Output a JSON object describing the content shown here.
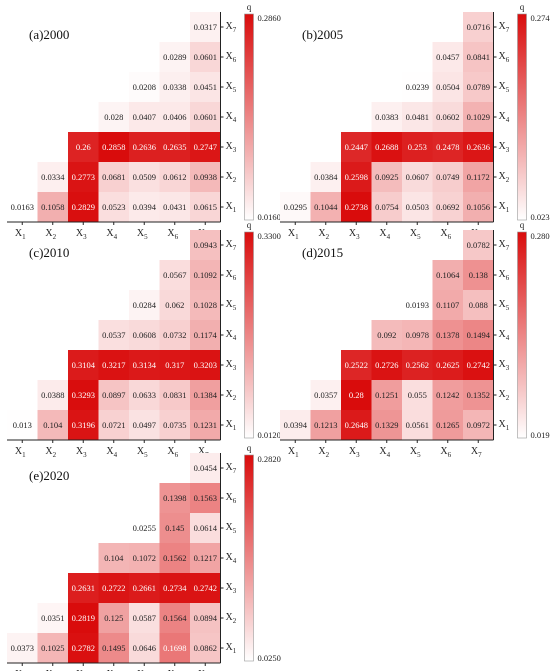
{
  "chart_data": [
    {
      "type": "heatmap",
      "title": "(a)2000",
      "colorbar": {
        "label": "q",
        "max": "0.2860",
        "min": "0.0160",
        "vmax": 0.286,
        "vmin": 0.016
      },
      "x_labels": [
        "X1",
        "X2",
        "X3",
        "X4",
        "X5",
        "X6",
        "X7"
      ],
      "y_labels": [
        "X7",
        "X6",
        "X5",
        "X4",
        "X3",
        "X2",
        "X1"
      ],
      "values": [
        [
          null,
          null,
          null,
          null,
          null,
          null,
          "0.0317"
        ],
        [
          null,
          null,
          null,
          null,
          null,
          "0.0289",
          "0.0601"
        ],
        [
          null,
          null,
          null,
          null,
          "0.0208",
          "0.0338",
          "0.0451"
        ],
        [
          null,
          null,
          null,
          "0.028",
          "0.0407",
          "0.0406",
          "0.0601"
        ],
        [
          null,
          null,
          "0.26",
          "0.2858",
          "0.2636",
          "0.2635",
          "0.2747"
        ],
        [
          null,
          "0.0334",
          "0.2773",
          "0.0681",
          "0.0509",
          "0.0612",
          "0.0938"
        ],
        [
          "0.0163",
          "0.1058",
          "0.2829",
          "0.0523",
          "0.0394",
          "0.0431",
          "0.0615"
        ]
      ]
    },
    {
      "type": "heatmap",
      "title": "(b)2005",
      "colorbar": {
        "label": "q",
        "max": "0.2740",
        "min": "0.0230",
        "vmax": 0.274,
        "vmin": 0.023
      },
      "x_labels": [
        "X1",
        "X2",
        "X3",
        "X4",
        "X5",
        "X6",
        "X7"
      ],
      "y_labels": [
        "X7",
        "X6",
        "X5",
        "X4",
        "X3",
        "X2",
        "X1"
      ],
      "values": [
        [
          null,
          null,
          null,
          null,
          null,
          null,
          "0.0716"
        ],
        [
          null,
          null,
          null,
          null,
          null,
          "0.0457",
          "0.0841"
        ],
        [
          null,
          null,
          null,
          null,
          "0.0239",
          "0.0504",
          "0.0789"
        ],
        [
          null,
          null,
          null,
          "0.0383",
          "0.0481",
          "0.0602",
          "0.1029"
        ],
        [
          null,
          null,
          "0.2447",
          "0.2688",
          "0.253",
          "0.2478",
          "0.2636"
        ],
        [
          null,
          "0.0384",
          "0.2598",
          "0.0925",
          "0.0607",
          "0.0749",
          "0.1172"
        ],
        [
          "0.0295",
          "0.1044",
          "0.2738",
          "0.0754",
          "0.0503",
          "0.0692",
          "0.1056"
        ]
      ]
    },
    {
      "type": "heatmap",
      "title": "(c)2010",
      "colorbar": {
        "label": "q",
        "max": "0.3300",
        "min": "0.0120",
        "vmax": 0.33,
        "vmin": 0.012
      },
      "x_labels": [
        "X1",
        "X2",
        "X3",
        "X4",
        "X5",
        "X6",
        "X7"
      ],
      "y_labels": [
        "X7",
        "X6",
        "X5",
        "X4",
        "X3",
        "X2",
        "X1"
      ],
      "values": [
        [
          null,
          null,
          null,
          null,
          null,
          null,
          "0.0943"
        ],
        [
          null,
          null,
          null,
          null,
          null,
          "0.0567",
          "0.1092"
        ],
        [
          null,
          null,
          null,
          null,
          "0.0284",
          "0.062",
          "0.1028"
        ],
        [
          null,
          null,
          null,
          "0.0537",
          "0.0608",
          "0.0732",
          "0.1174"
        ],
        [
          null,
          null,
          "0.3104",
          "0.3217",
          "0.3134",
          "0.317",
          "0.3203"
        ],
        [
          null,
          "0.0388",
          "0.3293",
          "0.0897",
          "0.0633",
          "0.0831",
          "0.1384"
        ],
        [
          "0.013",
          "0.104",
          "0.3196",
          "0.0721",
          "0.0497",
          "0.0735",
          "0.1231"
        ]
      ]
    },
    {
      "type": "heatmap",
      "title": "(d)2015",
      "colorbar": {
        "label": "q",
        "max": "0.2800",
        "min": "0.0190",
        "vmax": 0.28,
        "vmin": 0.019
      },
      "x_labels": [
        "X1",
        "X2",
        "X3",
        "X4",
        "X5",
        "X6",
        "X7"
      ],
      "y_labels": [
        "X7",
        "X6",
        "X5",
        "X4",
        "X3",
        "X2",
        "X1"
      ],
      "values": [
        [
          null,
          null,
          null,
          null,
          null,
          null,
          "0.0782"
        ],
        [
          null,
          null,
          null,
          null,
          null,
          "0.1064",
          "0.138"
        ],
        [
          null,
          null,
          null,
          null,
          "0.0193",
          "0.1107",
          "0.088"
        ],
        [
          null,
          null,
          null,
          "0.092",
          "0.0978",
          "0.1378",
          "0.1494"
        ],
        [
          null,
          null,
          "0.2522",
          "0.2726",
          "0.2562",
          "0.2625",
          "0.2742"
        ],
        [
          null,
          "0.0357",
          "0.28",
          "0.1251",
          "0.055",
          "0.1242",
          "0.1352"
        ],
        [
          "0.0394",
          "0.1213",
          "0.2648",
          "0.1329",
          "0.0561",
          "0.1265",
          "0.0972"
        ]
      ]
    },
    {
      "type": "heatmap",
      "title": "(e)2020",
      "colorbar": {
        "label": "q",
        "max": "0.2820",
        "min": "0.0250",
        "vmax": 0.282,
        "vmin": 0.025
      },
      "x_labels": [
        "X1",
        "X2",
        "X3",
        "X4",
        "X5",
        "X6",
        "X7"
      ],
      "y_labels": [
        "X7",
        "X6",
        "X5",
        "X4",
        "X3",
        "X2",
        "X1"
      ],
      "values": [
        [
          null,
          null,
          null,
          null,
          null,
          null,
          "0.0454"
        ],
        [
          null,
          null,
          null,
          null,
          null,
          "0.1398",
          "0.1563"
        ],
        [
          null,
          null,
          null,
          null,
          "0.0255",
          "0.145",
          "0.0614"
        ],
        [
          null,
          null,
          null,
          "0.104",
          "0.1072",
          "0.1562",
          "0.1217"
        ],
        [
          null,
          null,
          "0.2631",
          "0.2722",
          "0.2661",
          "0.2734",
          "0.2742"
        ],
        [
          null,
          "0.0351",
          "0.2819",
          "0.125",
          "0.0587",
          "0.1564",
          "0.0894"
        ],
        [
          "0.0373",
          "0.1025",
          "0.2782",
          "0.1495",
          "0.0646",
          "0.1698",
          "0.0862"
        ]
      ]
    }
  ]
}
